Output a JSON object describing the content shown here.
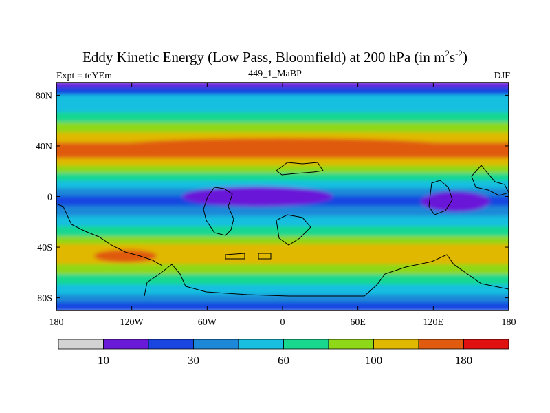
{
  "chart_data": {
    "type": "heatmap",
    "title": {
      "prefix": "Eddy Kinetic Energy (Low Pass, Bloomfield) at 200 hPa (in m",
      "sup1": "2",
      "mid": "s",
      "sup2": "-2",
      "suffix": ")"
    },
    "subtitle_left": "Expt = teYEm",
    "subtitle_center": "449_1_MaBP",
    "subtitle_right": "DJF",
    "x_ticks": [
      "180",
      "120W",
      "60W",
      "0",
      "60E",
      "120E",
      "180"
    ],
    "x_tick_values": [
      -180,
      -120,
      -60,
      0,
      60,
      120,
      180
    ],
    "y_ticks": [
      "80N",
      "40N",
      "0",
      "40S",
      "80S"
    ],
    "y_tick_values": [
      80,
      40,
      0,
      -40,
      -80
    ],
    "xlim": [
      -180,
      180
    ],
    "ylim": [
      -90,
      90
    ],
    "colorbar": {
      "colors": [
        "#d3d3d3",
        "#6a19d9",
        "#1946e0",
        "#1e88d8",
        "#18bfe0",
        "#18d890",
        "#8fd817",
        "#e0b800",
        "#e05a10",
        "#e01010"
      ],
      "labels": [
        "10",
        "30",
        "60",
        "100",
        "180"
      ],
      "label_boundaries": [
        1,
        3,
        5,
        7,
        9
      ]
    },
    "field_levels": [
      {
        "lat": 90,
        "level": 1
      },
      {
        "lat": 86,
        "level": 2
      },
      {
        "lat": 80,
        "level": 4
      },
      {
        "lat": 72,
        "level": 4
      },
      {
        "lat": 66,
        "level": 5
      },
      {
        "lat": 58,
        "level": 6
      },
      {
        "lat": 50,
        "level": 7
      },
      {
        "lat": 42,
        "level": 8
      },
      {
        "lat": 36,
        "level": 8
      },
      {
        "lat": 30,
        "level": 7
      },
      {
        "lat": 24,
        "level": 6
      },
      {
        "lat": 18,
        "level": 5
      },
      {
        "lat": 12,
        "level": 4
      },
      {
        "lat": 6,
        "level": 3
      },
      {
        "lat": 0,
        "level": 2
      },
      {
        "lat": -8,
        "level": 3
      },
      {
        "lat": -16,
        "level": 4
      },
      {
        "lat": -24,
        "level": 5
      },
      {
        "lat": -32,
        "level": 6
      },
      {
        "lat": -38,
        "level": 7
      },
      {
        "lat": -46,
        "level": 7
      },
      {
        "lat": -54,
        "level": 6
      },
      {
        "lat": -62,
        "level": 5
      },
      {
        "lat": -70,
        "level": 4
      },
      {
        "lat": -78,
        "level": 3
      },
      {
        "lat": -84,
        "level": 2
      },
      {
        "lat": -90,
        "level": 1
      }
    ],
    "features": [
      {
        "name": "northern-jet-core",
        "level": 8,
        "lon_range": [
          -140,
          140
        ],
        "lat_range": [
          32,
          46
        ]
      },
      {
        "name": "southern-jet-core",
        "level": 8,
        "lon_range": [
          -150,
          -100
        ],
        "lat_range": [
          -52,
          -42
        ]
      },
      {
        "name": "tropical-minimum-west-pacific",
        "level": 1,
        "lon_range": [
          110,
          165
        ],
        "lat_range": [
          -12,
          4
        ]
      },
      {
        "name": "tropical-low-band",
        "level": 1,
        "lon_range": [
          -80,
          40
        ],
        "lat_range": [
          -8,
          8
        ]
      }
    ]
  }
}
